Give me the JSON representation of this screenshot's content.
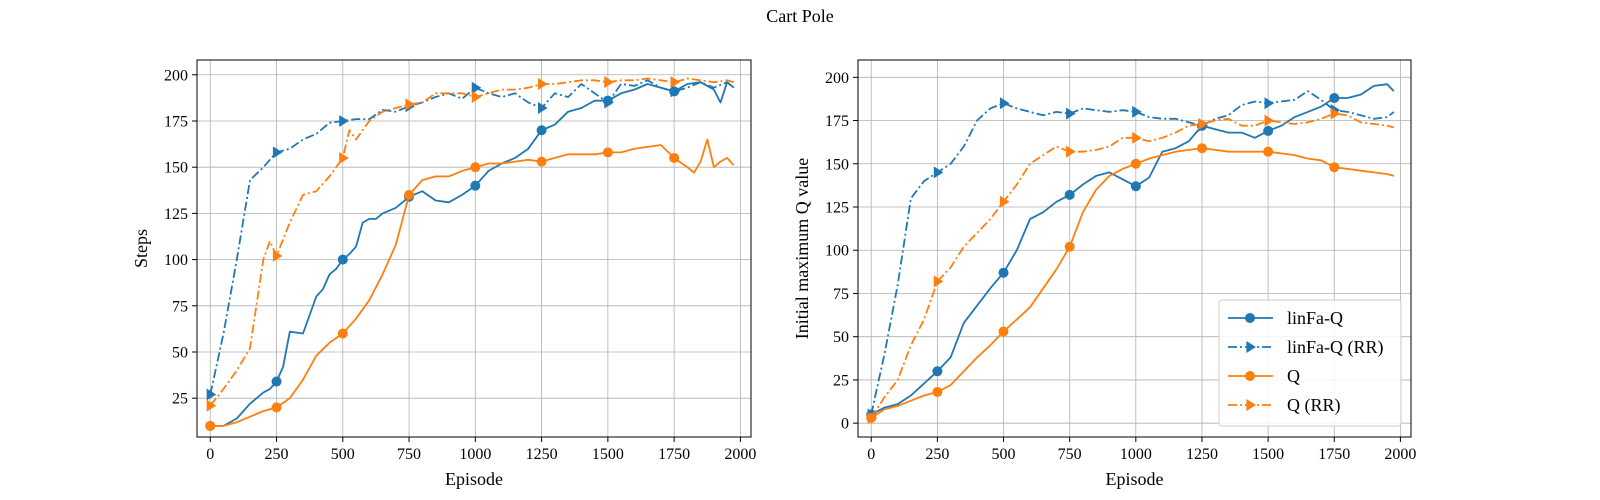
{
  "figure": {
    "title": "Cart Pole"
  },
  "colors": {
    "blue": "#1f77b4",
    "orange": "#ff7f0e",
    "grid": "#b0b0b0"
  },
  "chart_data": [
    {
      "type": "line",
      "title": "",
      "xlabel": "Episode",
      "ylabel": "Steps",
      "xlim": [
        -50,
        2040
      ],
      "ylim": [
        4,
        208
      ],
      "xticks": [
        0,
        250,
        500,
        750,
        1000,
        1250,
        1500,
        1750,
        2000
      ],
      "yticks": [
        25,
        50,
        75,
        100,
        125,
        150,
        175,
        200
      ],
      "grid": true,
      "legend": "none",
      "series": [
        {
          "name": "linFa-Q",
          "color": "#1f77b4",
          "dash": "solid",
          "marker": "circle",
          "markers_at": [
            0,
            250,
            500,
            750,
            1000,
            1250,
            1500,
            1750
          ],
          "x": [
            0,
            50,
            100,
            150,
            200,
            225,
            250,
            275,
            300,
            350,
            400,
            425,
            450,
            475,
            500,
            525,
            550,
            575,
            600,
            625,
            650,
            700,
            750,
            800,
            850,
            900,
            950,
            1000,
            1050,
            1100,
            1150,
            1200,
            1250,
            1300,
            1350,
            1400,
            1450,
            1500,
            1550,
            1600,
            1650,
            1700,
            1750,
            1800,
            1850,
            1900,
            1925,
            1950,
            1975
          ],
          "y": [
            10,
            10,
            14,
            22,
            28,
            30,
            34,
            42,
            61,
            60,
            80,
            84,
            92,
            95,
            100,
            103,
            107,
            120,
            122,
            122,
            125,
            128,
            134,
            137,
            132,
            131,
            135,
            140,
            148,
            152,
            155,
            160,
            170,
            173,
            180,
            182,
            186,
            186,
            190,
            192,
            195,
            193,
            191,
            195,
            196,
            192,
            185,
            196,
            193
          ]
        },
        {
          "name": "linFa-Q (RR)",
          "color": "#1f77b4",
          "dash": "dashdot",
          "marker": "triangle-right",
          "markers_at": [
            0,
            250,
            500,
            750,
            1000,
            1250,
            1500,
            1750
          ],
          "x": [
            0,
            50,
            100,
            150,
            200,
            250,
            300,
            350,
            400,
            450,
            500,
            550,
            600,
            650,
            700,
            750,
            800,
            850,
            900,
            950,
            1000,
            1050,
            1100,
            1150,
            1200,
            1250,
            1300,
            1350,
            1400,
            1450,
            1500,
            1550,
            1600,
            1650,
            1700,
            1750,
            1800,
            1850,
            1900,
            1950,
            1975
          ],
          "y": [
            27,
            60,
            100,
            143,
            150,
            158,
            160,
            165,
            168,
            174,
            175,
            176,
            176,
            181,
            180,
            183,
            185,
            188,
            190,
            187,
            193,
            190,
            188,
            190,
            185,
            182,
            190,
            188,
            195,
            190,
            185,
            195,
            194,
            197,
            193,
            191,
            193,
            196,
            193,
            196,
            193
          ]
        },
        {
          "name": "Q",
          "color": "#ff7f0e",
          "dash": "solid",
          "marker": "circle",
          "markers_at": [
            0,
            250,
            500,
            750,
            1000,
            1250,
            1500,
            1750
          ],
          "x": [
            0,
            50,
            100,
            150,
            200,
            250,
            300,
            350,
            400,
            450,
            500,
            550,
            600,
            650,
            700,
            750,
            800,
            850,
            900,
            950,
            1000,
            1050,
            1100,
            1150,
            1200,
            1250,
            1300,
            1350,
            1400,
            1450,
            1500,
            1550,
            1600,
            1650,
            1700,
            1750,
            1800,
            1825,
            1850,
            1875,
            1900,
            1925,
            1950,
            1975
          ],
          "y": [
            10,
            10,
            12,
            15,
            18,
            20,
            25,
            35,
            48,
            55,
            60,
            68,
            78,
            92,
            108,
            135,
            143,
            145,
            145,
            148,
            150,
            152,
            152,
            153,
            154,
            153,
            155,
            157,
            157,
            157,
            158,
            158,
            160,
            161,
            162,
            155,
            150,
            147,
            153,
            165,
            150,
            153,
            155,
            151
          ]
        },
        {
          "name": "Q (RR)",
          "color": "#ff7f0e",
          "dash": "dashdot",
          "marker": "triangle-right",
          "markers_at": [
            0,
            250,
            500,
            750,
            1000,
            1250,
            1500,
            1750
          ],
          "x": [
            0,
            50,
            100,
            150,
            200,
            225,
            250,
            300,
            350,
            400,
            450,
            500,
            525,
            550,
            600,
            650,
            700,
            750,
            800,
            850,
            900,
            950,
            1000,
            1050,
            1100,
            1150,
            1200,
            1250,
            1300,
            1350,
            1400,
            1450,
            1500,
            1550,
            1600,
            1650,
            1700,
            1750,
            1800,
            1850,
            1900,
            1950,
            1975
          ],
          "y": [
            21,
            30,
            40,
            52,
            100,
            110,
            102,
            120,
            135,
            137,
            145,
            155,
            170,
            165,
            175,
            180,
            182,
            184,
            185,
            190,
            190,
            190,
            188,
            190,
            192,
            192,
            193,
            195,
            195,
            196,
            197,
            197,
            196,
            197,
            197,
            198,
            197,
            196,
            198,
            197,
            196,
            197,
            196
          ]
        }
      ]
    },
    {
      "type": "line",
      "title": "",
      "xlabel": "Episode",
      "ylabel": "Initial maximum Q value",
      "xlim": [
        -50,
        2040
      ],
      "ylim": [
        -8,
        210
      ],
      "xticks": [
        0,
        250,
        500,
        750,
        1000,
        1250,
        1500,
        1750,
        2000
      ],
      "yticks": [
        0,
        25,
        50,
        75,
        100,
        125,
        150,
        175,
        200
      ],
      "grid": true,
      "legend": "lower-right",
      "series": [
        {
          "name": "linFa-Q",
          "color": "#1f77b4",
          "dash": "solid",
          "marker": "circle",
          "markers_at": [
            0,
            250,
            500,
            750,
            1000,
            1250,
            1500,
            1750
          ],
          "x": [
            0,
            50,
            100,
            150,
            200,
            250,
            300,
            350,
            400,
            450,
            500,
            550,
            600,
            650,
            700,
            750,
            800,
            850,
            900,
            950,
            1000,
            1050,
            1100,
            1150,
            1200,
            1250,
            1300,
            1350,
            1400,
            1450,
            1500,
            1550,
            1600,
            1650,
            1700,
            1750,
            1800,
            1850,
            1900,
            1950,
            1975
          ],
          "y": [
            5,
            9,
            11,
            16,
            23,
            30,
            38,
            58,
            68,
            78,
            87,
            100,
            118,
            122,
            128,
            132,
            138,
            143,
            145,
            141,
            137,
            142,
            157,
            159,
            163,
            172,
            170,
            168,
            168,
            165,
            169,
            172,
            177,
            180,
            183,
            188,
            188,
            190,
            195,
            196,
            192
          ]
        },
        {
          "name": "linFa-Q (RR)",
          "color": "#1f77b4",
          "dash": "dashdot",
          "marker": "triangle-right",
          "markers_at": [
            0,
            250,
            500,
            750,
            1000,
            1250,
            1500,
            1750
          ],
          "x": [
            0,
            50,
            100,
            150,
            200,
            250,
            300,
            350,
            400,
            450,
            500,
            550,
            600,
            650,
            700,
            750,
            800,
            850,
            900,
            950,
            1000,
            1050,
            1100,
            1150,
            1200,
            1250,
            1300,
            1350,
            1400,
            1450,
            1500,
            1550,
            1600,
            1650,
            1700,
            1750,
            1800,
            1850,
            1900,
            1950,
            1975
          ],
          "y": [
            5,
            40,
            80,
            130,
            140,
            145,
            150,
            160,
            175,
            182,
            185,
            182,
            180,
            178,
            180,
            179,
            182,
            181,
            180,
            181,
            180,
            177,
            176,
            176,
            174,
            172,
            176,
            178,
            184,
            186,
            185,
            186,
            187,
            192,
            187,
            181,
            180,
            178,
            176,
            177,
            180
          ]
        },
        {
          "name": "Q",
          "color": "#ff7f0e",
          "dash": "solid",
          "marker": "circle",
          "markers_at": [
            0,
            250,
            500,
            750,
            1000,
            1250,
            1500,
            1750
          ],
          "x": [
            0,
            50,
            100,
            150,
            200,
            250,
            300,
            350,
            400,
            450,
            500,
            550,
            600,
            650,
            700,
            750,
            800,
            850,
            900,
            950,
            1000,
            1050,
            1100,
            1150,
            1200,
            1250,
            1300,
            1350,
            1400,
            1450,
            1500,
            1550,
            1600,
            1650,
            1700,
            1750,
            1800,
            1850,
            1900,
            1950,
            1975
          ],
          "y": [
            3,
            8,
            10,
            13,
            16,
            18,
            22,
            30,
            38,
            45,
            53,
            60,
            67,
            78,
            89,
            102,
            122,
            135,
            143,
            147,
            150,
            153,
            155,
            157,
            158,
            159,
            158,
            157,
            157,
            157,
            157,
            156,
            155,
            153,
            152,
            148,
            147,
            146,
            145,
            144,
            143
          ]
        },
        {
          "name": "Q (RR)",
          "color": "#ff7f0e",
          "dash": "dashdot",
          "marker": "triangle-right",
          "markers_at": [
            0,
            250,
            500,
            750,
            1000,
            1250,
            1500,
            1750
          ],
          "x": [
            0,
            50,
            100,
            150,
            200,
            250,
            300,
            350,
            400,
            450,
            500,
            550,
            600,
            650,
            700,
            750,
            800,
            850,
            900,
            950,
            1000,
            1050,
            1100,
            1150,
            1200,
            1250,
            1300,
            1350,
            1400,
            1450,
            1500,
            1550,
            1600,
            1650,
            1700,
            1750,
            1800,
            1850,
            1900,
            1950,
            1975
          ],
          "y": [
            3,
            15,
            25,
            45,
            60,
            82,
            90,
            102,
            110,
            118,
            128,
            138,
            150,
            155,
            160,
            157,
            157,
            158,
            160,
            165,
            165,
            163,
            165,
            168,
            172,
            173,
            175,
            176,
            172,
            172,
            175,
            174,
            173,
            174,
            176,
            179,
            178,
            174,
            173,
            172,
            171
          ]
        }
      ]
    }
  ]
}
